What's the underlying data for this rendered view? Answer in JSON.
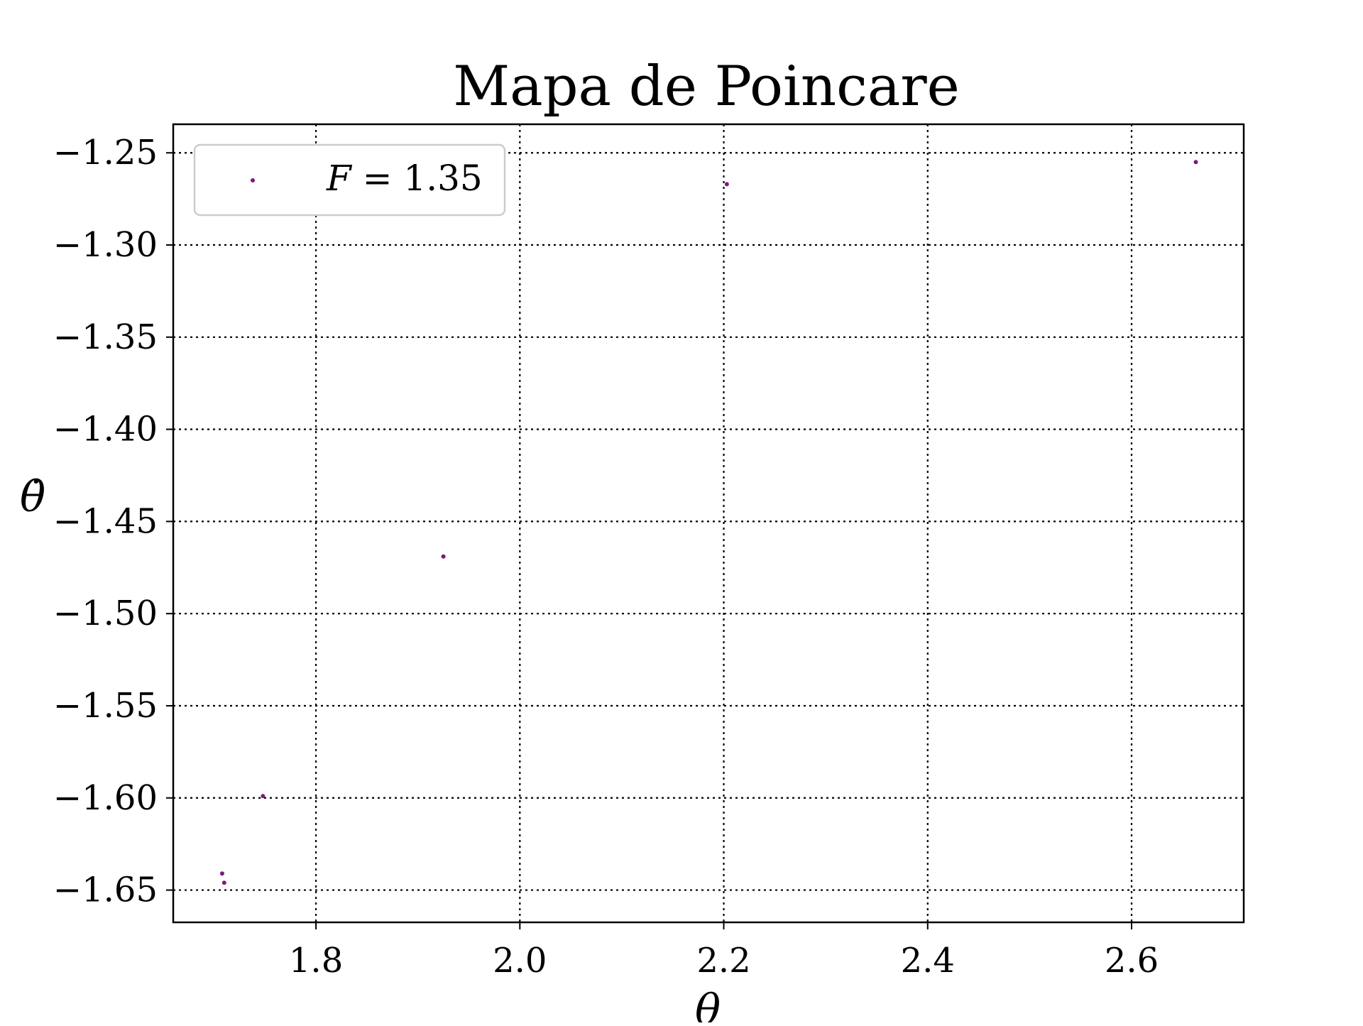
{
  "chart_data": {
    "type": "scatter",
    "title": "Mapa de Poincare",
    "xlabel": "θ",
    "ylabel": "θ̇",
    "xlim": [
      1.66,
      2.71
    ],
    "ylim": [
      -1.6675,
      -1.2345
    ],
    "x_ticks": [
      1.8,
      2.0,
      2.2,
      2.4,
      2.6
    ],
    "x_tick_labels": [
      "1.8",
      "2.0",
      "2.2",
      "2.4",
      "2.6"
    ],
    "y_ticks": [
      -1.25,
      -1.3,
      -1.35,
      -1.4,
      -1.45,
      -1.5,
      -1.55,
      -1.6,
      -1.65
    ],
    "y_tick_labels": [
      "−1.25",
      "−1.30",
      "−1.35",
      "−1.40",
      "−1.45",
      "−1.50",
      "−1.55",
      "−1.60",
      "−1.65"
    ],
    "grid": true,
    "legend_position": "top-left",
    "series": [
      {
        "name": "F = 1.35",
        "name_parts": [
          "F",
          " = 1.35"
        ],
        "color": "#7b1a7b",
        "x": [
          1.708,
          1.71,
          1.748,
          1.925,
          2.203,
          2.663
        ],
        "y": [
          -1.641,
          -1.646,
          -1.599,
          -1.469,
          -1.267,
          -1.255
        ]
      }
    ]
  }
}
